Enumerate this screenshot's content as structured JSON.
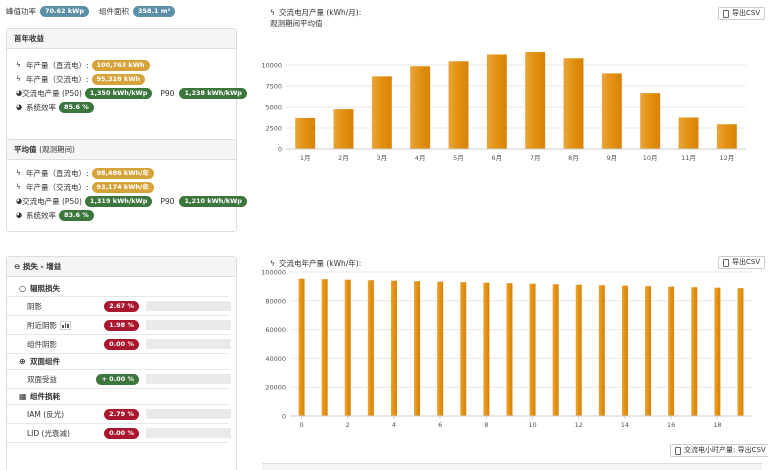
{
  "header": {
    "peak_power_label": "峰值功率",
    "peak_power_value": "70.62 kWp",
    "module_area_label": "组件面积",
    "module_area_value": "358.1 m²"
  },
  "first_year": {
    "title": "首年收益",
    "dc_yield_label": "年产量（直流电）:",
    "dc_yield_value": "100,763 kWh",
    "ac_yield_label": "年产量（交流电）:",
    "ac_yield_value": "95,328 kWh",
    "specific_label": "交流电产量 (P50)",
    "specific_p50": "1,350 kWh/kWp",
    "p90_label": "P90",
    "specific_p90": "1,238 kWh/kWp",
    "efficiency_label": "系统效率",
    "efficiency_value": "85.6 %"
  },
  "average": {
    "title": "平均值",
    "title_note": "(观测期间)",
    "dc_yield_label": "年产量（直流电）:",
    "dc_yield_value": "98,486 kWh/年",
    "ac_yield_label": "年产量（交流电）:",
    "ac_yield_value": "93,174 kWh/年",
    "specific_label": "交流电产量 (P50)",
    "specific_p50": "1,319 kWh/kWp",
    "p90_label": "P90",
    "specific_p90": "1,210 kWh/kWp",
    "efficiency_label": "系统效率",
    "efficiency_value": "83.6 %"
  },
  "losses": {
    "title": "损失 - 增益",
    "irradiation_section": "辐照损失",
    "bifacial_section": "双面组件",
    "module_section": "组件损耗",
    "rows": [
      {
        "name": "阴影",
        "value": "2.67 %",
        "fraction": 0.55,
        "chart_icon": false
      },
      {
        "name": "附近阴影",
        "value": "1.98 %",
        "fraction": 0.41,
        "chart_icon": true
      },
      {
        "name": "组件阴影",
        "value": "0.00 %",
        "fraction": 0.0,
        "chart_icon": false
      },
      {
        "name": "双面受益",
        "value": "+ 0.00 %",
        "fraction": 0.0,
        "chart_icon": false
      },
      {
        "name": "IAM (反光)",
        "value": "2.79 %",
        "fraction": 0.58,
        "chart_icon": false
      },
      {
        "name": "LID (光衰减)",
        "value": "0.00 %",
        "fraction": 0.0,
        "chart_icon": false
      }
    ]
  },
  "monthly_chart": {
    "title": "交流电月产量 (kWh/月):",
    "subtitle": "观测期间平均值",
    "export_label": "导出CSV"
  },
  "annual_chart": {
    "title": "交流电年产量 (kWh/年):",
    "export_label": "导出CSV",
    "hourly_export_label": "交流电小时产量: 导出CSV"
  },
  "chart_data": [
    {
      "type": "bar",
      "title": "交流电月产量 (kWh/月):",
      "subtitle": "观测期间平均值",
      "categories": [
        "1月",
        "2月",
        "3月",
        "4月",
        "5月",
        "6月",
        "7月",
        "8月",
        "9月",
        "10月",
        "11月",
        "12月"
      ],
      "values": [
        3700,
        4750,
        8650,
        9850,
        10450,
        11250,
        11550,
        10800,
        9000,
        6650,
        3750,
        2950
      ],
      "ylim": [
        0,
        12500
      ],
      "yticks": [
        0,
        2500,
        5000,
        7500,
        10000
      ],
      "grid": true,
      "color": "#e2900f"
    },
    {
      "type": "bar",
      "title": "交流电年产量 (kWh/年):",
      "x": [
        0,
        1,
        2,
        3,
        4,
        5,
        6,
        7,
        8,
        9,
        10,
        11,
        12,
        13,
        14,
        15,
        16,
        17,
        18,
        19
      ],
      "values": [
        95328,
        95000,
        94650,
        94300,
        93950,
        93600,
        93250,
        92900,
        92550,
        92200,
        91850,
        91500,
        91150,
        90800,
        90500,
        90150,
        89800,
        89450,
        89100,
        88750
      ],
      "xticks": [
        0,
        2,
        4,
        6,
        8,
        10,
        12,
        14,
        16,
        18
      ],
      "ylim": [
        0,
        100000
      ],
      "yticks": [
        0,
        20000,
        40000,
        60000,
        80000,
        100000
      ],
      "grid": true,
      "color": "#e2900f"
    }
  ]
}
